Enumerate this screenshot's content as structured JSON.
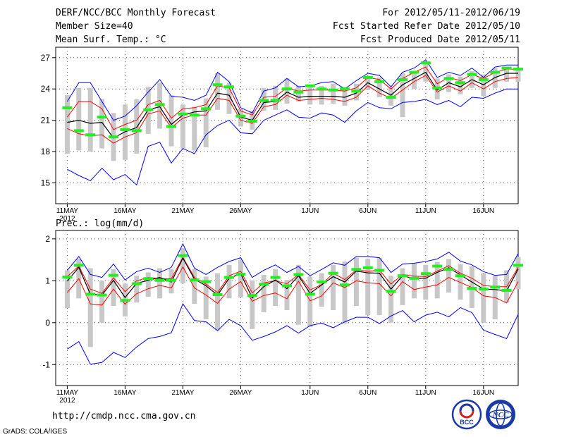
{
  "header": {
    "title": "DERF/NCC/BCC Monthly Forecast",
    "member_size": "Member Size=40",
    "variable": "Mean Surf. Temp.: °C",
    "period": "For 2012/05/11-2012/06/19",
    "started": "Fcst Started Refer Date 2012/05/10",
    "produced": "Fcst Produced Date 2012/05/11"
  },
  "panel2_label": "Prec.: log(mm/d)",
  "footer": {
    "url": "http://cmdp.ncc.cma.gov.cn",
    "grads": "GrADS: COLA/IGES"
  },
  "logos": {
    "bcc": "BCC",
    "ncc": "NCC"
  },
  "colors": {
    "mean": "#000000",
    "spread": "#ff0000",
    "extreme": "#0000ff",
    "observed": "#22ee22",
    "quartile": "#c8c8c8",
    "grid": "#555555"
  },
  "chart_data": [
    {
      "type": "line",
      "title": "Mean Surf. Temp.: °C",
      "xlabel": "",
      "ylabel": "°C",
      "ylim": [
        13,
        28
      ],
      "yticks": [
        15,
        18,
        21,
        24,
        27
      ],
      "xlim": [
        0,
        40
      ],
      "x_ticks": [
        {
          "day": 1,
          "label": "11MAY",
          "sub": "2012"
        },
        {
          "day": 6,
          "label": "16MAY",
          "sub": ""
        },
        {
          "day": 11,
          "label": "21MAY",
          "sub": ""
        },
        {
          "day": 16,
          "label": "26MAY",
          "sub": ""
        },
        {
          "day": 22,
          "label": "1JUN",
          "sub": ""
        },
        {
          "day": 27,
          "label": "6JUN",
          "sub": ""
        },
        {
          "day": 32,
          "label": "11JUN",
          "sub": ""
        },
        {
          "day": 37,
          "label": "16JUN",
          "sub": ""
        }
      ],
      "days": [
        1,
        2,
        3,
        4,
        5,
        6,
        7,
        8,
        9,
        10,
        11,
        12,
        13,
        14,
        15,
        16,
        17,
        18,
        19,
        20,
        21,
        22,
        23,
        24,
        25,
        26,
        27,
        28,
        29,
        30,
        31,
        32,
        33,
        34,
        35,
        36,
        37,
        38,
        39,
        40
      ],
      "series": [
        {
          "name": "max",
          "values": [
            16.3,
            15.7,
            15.2,
            16.4,
            15.3,
            15.8,
            14.8,
            18.5,
            18.9,
            16.9,
            18.3,
            17.8,
            19.6,
            20.5,
            21.0,
            19.8,
            19.7,
            21.0,
            21.5,
            22.0,
            21.3,
            21.2,
            21.7,
            21.5,
            20.8,
            21.9,
            22.7,
            22.2,
            22.1,
            22.7,
            22.8,
            23.0,
            22.5,
            22.9,
            22.3,
            23.2,
            23.1,
            23.6,
            24.0,
            24.0
          ]
        },
        {
          "name": "p_low",
          "values": [
            20.2,
            19.7,
            19.5,
            19.6,
            18.8,
            19.4,
            19.8,
            21.6,
            21.9,
            20.3,
            21.2,
            21.5,
            21.5,
            23.1,
            22.9,
            21.0,
            20.7,
            22.3,
            22.5,
            23.4,
            22.9,
            23.0,
            23.1,
            23.0,
            22.8,
            23.2,
            24.3,
            23.6,
            23.1,
            23.9,
            24.7,
            25.3,
            23.7,
            24.3,
            23.8,
            24.6,
            24.0,
            24.7,
            25.0,
            25.1
          ]
        },
        {
          "name": "mean",
          "values": [
            20.8,
            21.0,
            20.7,
            20.8,
            19.3,
            19.9,
            20.3,
            22.0,
            22.3,
            20.6,
            21.5,
            21.8,
            21.9,
            23.6,
            23.4,
            21.3,
            21.0,
            22.7,
            22.8,
            23.7,
            23.2,
            23.3,
            23.3,
            23.3,
            23.2,
            23.6,
            24.6,
            24.0,
            23.4,
            24.4,
            25.0,
            25.6,
            23.9,
            24.6,
            24.2,
            24.9,
            24.4,
            25.1,
            25.5,
            25.5
          ]
        },
        {
          "name": "p_high",
          "values": [
            21.3,
            22.8,
            22.8,
            22.1,
            20.1,
            20.6,
            21.0,
            22.5,
            22.9,
            21.2,
            22.1,
            22.2,
            22.5,
            24.3,
            24.1,
            21.9,
            21.5,
            23.2,
            23.3,
            24.1,
            23.8,
            23.9,
            23.9,
            23.9,
            23.8,
            24.1,
            25.1,
            24.9,
            24.0,
            25.0,
            25.6,
            26.1,
            24.5,
            25.1,
            24.8,
            25.4,
            25.0,
            25.6,
            25.9,
            25.9
          ]
        },
        {
          "name": "min",
          "values": [
            22.8,
            24.6,
            24.6,
            22.8,
            21.0,
            21.4,
            22.4,
            23.7,
            24.9,
            23.3,
            23.2,
            22.9,
            23.4,
            25.6,
            24.7,
            22.2,
            21.7,
            23.8,
            24.1,
            25.0,
            24.2,
            24.3,
            24.6,
            24.7,
            24.0,
            24.8,
            25.5,
            25.3,
            24.2,
            25.6,
            26.0,
            26.8,
            25.1,
            25.6,
            25.3,
            26.0,
            25.1,
            26.1,
            26.3,
            26.3
          ]
        },
        {
          "name": "observed",
          "values": [
            22.2,
            20.0,
            19.6,
            21.3,
            19.4,
            20.1,
            20.0,
            22.0,
            22.5,
            20.4,
            21.6,
            21.5,
            22.1,
            24.4,
            24.2,
            21.4,
            20.9,
            22.9,
            22.9,
            24.0,
            23.7,
            24.3,
            24.0,
            23.9,
            24.0,
            23.8,
            25.1,
            24.7,
            23.2,
            24.9,
            25.6,
            26.5,
            24.1,
            25.0,
            24.6,
            25.4,
            24.9,
            25.6,
            26.0,
            25.9
          ]
        },
        {
          "name": "q25",
          "values": [
            17.8,
            18.1,
            18.0,
            18.3,
            17.1,
            17.2,
            17.8,
            19.7,
            20.2,
            18.5,
            18.3,
            18.1,
            18.4,
            22.0,
            21.6,
            20.4,
            20.1,
            21.9,
            22.0,
            22.6,
            22.8,
            22.5,
            22.5,
            22.6,
            22.4,
            22.9,
            23.9,
            23.2,
            22.4,
            21.3,
            24.0,
            24.7,
            23.0,
            23.7,
            23.5,
            24.1,
            23.3,
            24.1,
            24.7,
            24.7
          ]
        },
        {
          "name": "q75",
          "values": [
            23.4,
            24.1,
            24.1,
            23.0,
            21.7,
            22.5,
            23.0,
            24.2,
            24.6,
            23.4,
            22.5,
            22.3,
            23.1,
            25.5,
            24.6,
            22.1,
            21.9,
            24.1,
            24.3,
            25.0,
            24.3,
            24.2,
            24.3,
            24.5,
            24.2,
            24.5,
            25.2,
            25.1,
            24.2,
            25.5,
            25.7,
            26.6,
            25.0,
            25.4,
            25.2,
            25.7,
            25.4,
            26.0,
            26.1,
            26.0
          ]
        }
      ]
    },
    {
      "type": "line",
      "title": "Prec.: log(mm/d)",
      "xlabel": "",
      "ylabel": "log(mm/d)",
      "ylim": [
        -1.5,
        2.2
      ],
      "yticks": [
        -1,
        0,
        1,
        2
      ],
      "xlim": [
        0,
        40
      ],
      "x_ticks": [
        {
          "day": 1,
          "label": "11MAY",
          "sub": "2012"
        },
        {
          "day": 6,
          "label": "16MAY",
          "sub": ""
        },
        {
          "day": 11,
          "label": "21MAY",
          "sub": ""
        },
        {
          "day": 16,
          "label": "26MAY",
          "sub": ""
        },
        {
          "day": 22,
          "label": "1JUN",
          "sub": ""
        },
        {
          "day": 27,
          "label": "6JUN",
          "sub": ""
        },
        {
          "day": 32,
          "label": "11JUN",
          "sub": ""
        },
        {
          "day": 37,
          "label": "16JUN",
          "sub": ""
        }
      ],
      "days": [
        1,
        2,
        3,
        4,
        5,
        6,
        7,
        8,
        9,
        10,
        11,
        12,
        13,
        14,
        15,
        16,
        17,
        18,
        19,
        20,
        21,
        22,
        23,
        24,
        25,
        26,
        27,
        28,
        29,
        30,
        31,
        32,
        33,
        34,
        35,
        36,
        37,
        38,
        39,
        40
      ],
      "series": [
        {
          "name": "min",
          "values": [
            -0.63,
            -0.45,
            -0.99,
            -0.95,
            -0.71,
            -0.83,
            -0.58,
            -0.38,
            -0.33,
            -0.24,
            0.45,
            0.05,
            0.02,
            -0.19,
            0.08,
            -0.07,
            -0.42,
            -0.33,
            -0.22,
            -0.07,
            -0.25,
            -0.07,
            -0.01,
            -0.12,
            0.02,
            0.13,
            0.13,
            -0.02,
            0.16,
            0.29,
            0.02,
            0.18,
            0.25,
            0.14,
            0.36,
            0.24,
            -0.18,
            -0.28,
            -0.38,
            0.2
          ]
        },
        {
          "name": "p_low",
          "values": [
            0.72,
            1.05,
            0.45,
            0.42,
            0.8,
            0.44,
            0.69,
            0.81,
            0.89,
            0.83,
            1.33,
            0.83,
            0.66,
            0.46,
            0.8,
            0.98,
            0.51,
            0.65,
            0.71,
            0.57,
            0.99,
            0.52,
            0.64,
            0.95,
            0.84,
            1.0,
            0.95,
            0.93,
            0.64,
            0.98,
            0.79,
            0.85,
            0.9,
            1.08,
            0.96,
            0.84,
            0.64,
            0.6,
            0.47,
            0.98
          ]
        },
        {
          "name": "mean",
          "values": [
            0.99,
            1.32,
            0.68,
            0.66,
            1.01,
            0.6,
            0.94,
            1.01,
            1.08,
            0.97,
            1.54,
            1.04,
            0.88,
            0.66,
            1.06,
            1.17,
            0.59,
            0.86,
            1.02,
            0.81,
            1.12,
            0.7,
            0.9,
            1.1,
            0.97,
            1.23,
            1.19,
            1.18,
            0.8,
            1.12,
            1.05,
            1.06,
            1.2,
            1.31,
            1.14,
            0.97,
            0.8,
            0.79,
            0.76,
            1.28
          ]
        },
        {
          "name": "p_high",
          "values": [
            1.1,
            1.35,
            0.8,
            0.7,
            1.07,
            0.74,
            1.0,
            1.08,
            1.05,
            1.05,
            1.56,
            1.08,
            0.92,
            0.72,
            1.12,
            1.23,
            0.71,
            0.95,
            1.0,
            0.93,
            1.15,
            0.78,
            0.91,
            1.18,
            1.03,
            1.26,
            1.23,
            1.25,
            0.92,
            1.15,
            1.11,
            1.1,
            1.23,
            1.36,
            1.18,
            1.06,
            0.89,
            0.86,
            0.86,
            1.32
          ]
        },
        {
          "name": "max",
          "values": [
            1.25,
            1.58,
            1.15,
            1.08,
            1.4,
            1.02,
            1.22,
            1.3,
            1.2,
            1.32,
            1.88,
            1.3,
            1.15,
            1.32,
            1.46,
            1.55,
            1.08,
            1.25,
            1.38,
            1.2,
            1.34,
            1.12,
            1.27,
            1.43,
            1.37,
            1.58,
            1.58,
            1.55,
            1.2,
            1.4,
            1.42,
            1.46,
            1.52,
            1.68,
            1.47,
            1.38,
            1.22,
            1.13,
            1.15,
            1.65
          ]
        },
        {
          "name": "observed",
          "values": [
            1.09,
            1.37,
            0.68,
            0.66,
            1.13,
            0.53,
            0.93,
            1.05,
            1.01,
            1.01,
            1.6,
            1.02,
            0.98,
            0.67,
            1.08,
            1.16,
            0.65,
            0.92,
            1.08,
            0.88,
            1.15,
            0.68,
            0.97,
            1.18,
            0.9,
            1.27,
            1.31,
            1.25,
            0.75,
            1.12,
            1.06,
            1.17,
            1.35,
            1.27,
            1.12,
            0.82,
            0.8,
            0.85,
            0.77,
            1.37
          ]
        },
        {
          "name": "q25",
          "values": [
            0.35,
            0.58,
            -0.58,
            0.0,
            0.4,
            0.15,
            0.48,
            0.62,
            0.58,
            0.7,
            0.94,
            0.45,
            0.08,
            -0.18,
            0.58,
            0.6,
            -0.15,
            0.25,
            0.4,
            0.3,
            -0.05,
            -0.1,
            0.38,
            0.3,
            -0.02,
            0.4,
            0.18,
            0.18,
            0.0,
            0.42,
            0.58,
            0.55,
            0.58,
            0.72,
            0.55,
            0.35,
            0.0,
            0.08,
            0.48,
            0.8
          ]
        },
        {
          "name": "q75",
          "values": [
            1.25,
            1.52,
            1.3,
            1.0,
            1.28,
            0.93,
            1.12,
            1.2,
            1.3,
            1.28,
            1.78,
            1.28,
            1.1,
            1.18,
            1.38,
            1.5,
            1.01,
            1.14,
            1.28,
            1.02,
            1.38,
            1.1,
            1.18,
            1.38,
            1.46,
            1.55,
            1.52,
            1.55,
            1.12,
            1.3,
            1.42,
            1.38,
            1.45,
            1.52,
            1.4,
            1.35,
            1.18,
            1.12,
            1.25,
            1.57
          ]
        }
      ]
    }
  ]
}
